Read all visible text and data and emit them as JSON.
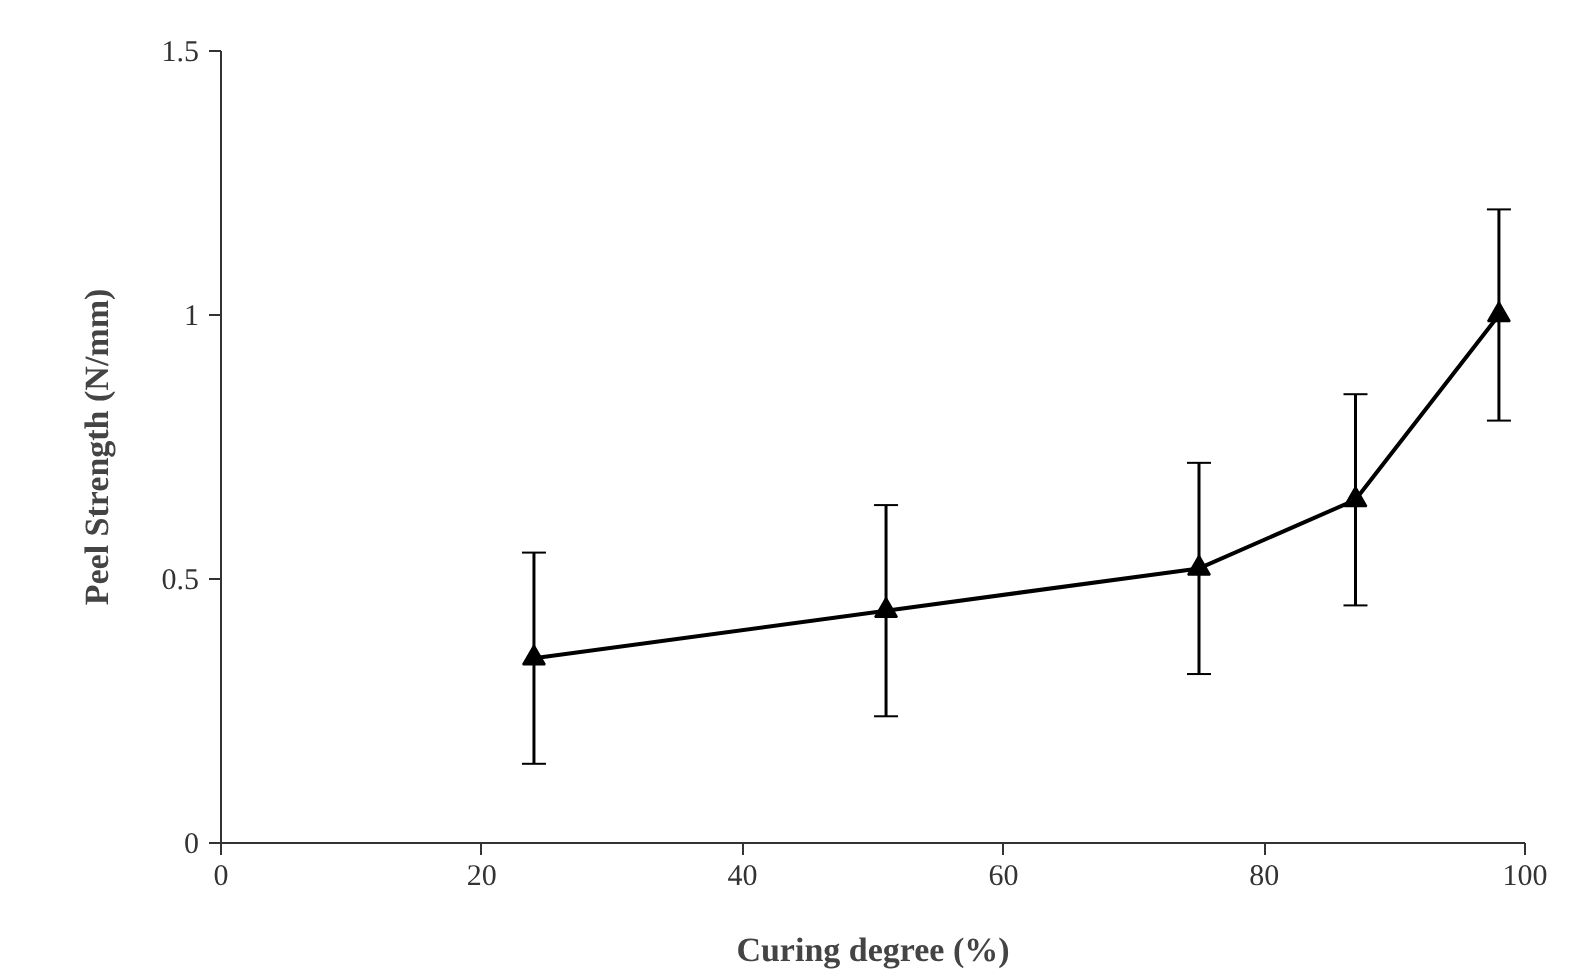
{
  "chart_data": {
    "type": "line",
    "xlabel": "Curing degree (%)",
    "ylabel": "Peel Strength (N/mm)",
    "x": [
      24,
      51,
      75,
      87,
      98
    ],
    "series": [
      {
        "color": "#000000",
        "values": [
          0.35,
          0.44,
          0.52,
          0.65,
          1.0
        ],
        "errors": [
          0.2,
          0.2,
          0.2,
          0.2,
          0.2
        ]
      }
    ],
    "xlim": [
      0,
      100
    ],
    "xticks": [
      0,
      20,
      40,
      60,
      80,
      100
    ],
    "ylim": [
      0,
      1.5
    ],
    "yticks": [
      0,
      0.5,
      1,
      1.5
    ],
    "grid": false,
    "marker": "triangle",
    "line_style": "solid"
  }
}
